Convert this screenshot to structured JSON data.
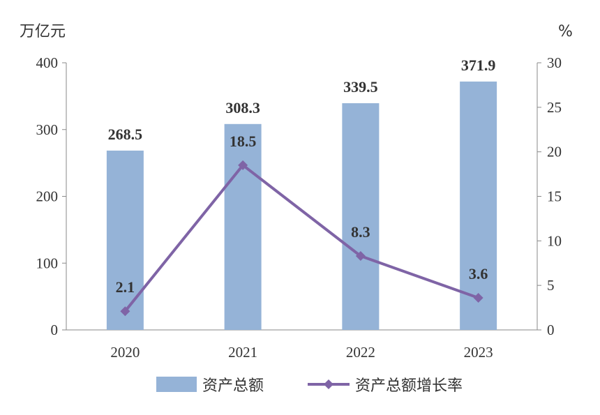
{
  "chart_data": {
    "type": "bar",
    "categories": [
      "2020",
      "2021",
      "2022",
      "2023"
    ],
    "series": [
      {
        "name": "资产总额",
        "type": "bar",
        "axis": "left",
        "values": [
          268.5,
          308.3,
          339.5,
          371.9
        ],
        "color": "#95B3D7"
      },
      {
        "name": "资产总额增长率",
        "type": "line",
        "axis": "right",
        "values": [
          2.1,
          18.5,
          8.3,
          3.6
        ],
        "color": "#7F64A6"
      }
    ],
    "y_left": {
      "unit": "万亿元",
      "range": [
        0,
        400
      ],
      "ticks": [
        0,
        100,
        200,
        300,
        400
      ]
    },
    "y_right": {
      "unit": "%",
      "range": [
        0,
        30
      ],
      "ticks": [
        0,
        5,
        10,
        15,
        20,
        25,
        30
      ]
    },
    "legend_position": "bottom",
    "grid": false
  }
}
